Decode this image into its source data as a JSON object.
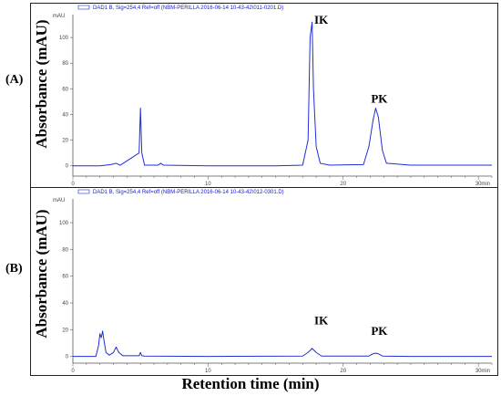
{
  "figure": {
    "y_axis_label": "Absorbance (mAU)",
    "x_axis_label": "Retention time (min)",
    "line_color": "#1f2fd6"
  },
  "chart_data": [
    {
      "type": "line",
      "panel": "(A)",
      "title": "",
      "legend": "DAD1 B, Sig=254,4 Ref=off (NBM-PERILLA 2016-06-14 10-43-42\\011-0201.D)",
      "yunit": "mAU",
      "xunit": "min",
      "xlim": [
        0,
        31
      ],
      "ylim": [
        -8,
        115
      ],
      "xticks": [
        0,
        10,
        20,
        30
      ],
      "yticks": [
        0,
        20,
        40,
        60,
        80,
        100
      ],
      "grid": false,
      "series": [
        {
          "x": [
            0,
            2,
            2.8,
            3.2,
            3.5,
            4.9,
            5.0,
            5.1,
            5.3,
            6.3,
            6.5,
            6.7,
            10,
            15,
            17.0,
            17.4,
            17.55,
            17.7,
            17.8,
            18.0,
            18.3,
            19,
            21.5,
            21.9,
            22.2,
            22.4,
            22.6,
            22.9,
            23.2,
            25,
            29,
            31
          ],
          "y": [
            0,
            0,
            1,
            2,
            0.5,
            10,
            45,
            10,
            0.5,
            0.5,
            2,
            0.5,
            0,
            0,
            0.5,
            20,
            100,
            112,
            60,
            15,
            2,
            0.5,
            1,
            15,
            35,
            45,
            38,
            12,
            2,
            0.5,
            0.5,
            0.5
          ]
        }
      ],
      "annotations": [
        {
          "text": "IK",
          "x": 17.7,
          "y": 112
        },
        {
          "text": "PK",
          "x": 22.4,
          "y": 45
        }
      ]
    },
    {
      "type": "line",
      "panel": "(B)",
      "title": "",
      "legend": "DAD1 B, Sig=254,4 Ref=off (NBM-PERILLA 2016-06-14 10-43-42\\012-0301.D)",
      "yunit": "mAU",
      "xunit": "min",
      "xlim": [
        0,
        31
      ],
      "ylim": [
        -5,
        115
      ],
      "xticks": [
        0,
        10,
        20,
        30
      ],
      "yticks": [
        0,
        20,
        40,
        60,
        80,
        100
      ],
      "grid": false,
      "series": [
        {
          "x": [
            0,
            1.7,
            1.9,
            2.0,
            2.1,
            2.2,
            2.3,
            2.45,
            2.7,
            3.0,
            3.2,
            3.4,
            3.7,
            4.9,
            5.0,
            5.1,
            5.3,
            10,
            17.0,
            17.4,
            17.7,
            18.0,
            18.4,
            21.9,
            22.2,
            22.4,
            22.6,
            22.9,
            25,
            31
          ],
          "y": [
            0,
            0,
            8,
            17,
            14,
            19,
            12,
            3,
            1,
            3,
            7,
            3,
            0.5,
            0.5,
            3,
            0.5,
            0.3,
            0,
            0.3,
            3,
            6,
            3,
            0.3,
            0.3,
            2,
            2.5,
            2,
            0.3,
            0,
            0
          ]
        }
      ],
      "annotations": [
        {
          "text": "IK",
          "x": 17.7,
          "y": 20
        },
        {
          "text": "PK",
          "x": 22.4,
          "y": 12
        }
      ]
    }
  ]
}
